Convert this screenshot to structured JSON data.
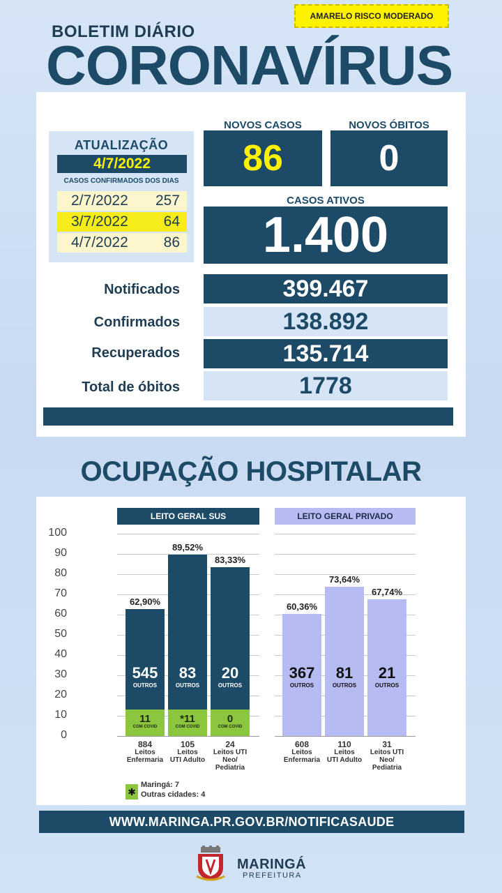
{
  "risk_label": "AMARELO RISCO MODERADO",
  "header": {
    "subtitle": "BOLETIM DIÁRIO",
    "title": "CORONAVÍRUS"
  },
  "update": {
    "title": "ATUALIZAÇÃO",
    "date": "4/7/2022",
    "confirmed_label": "CASOS CONFIRMADOS DOS DIAS",
    "days": [
      {
        "date": "2/7/2022",
        "value": "257"
      },
      {
        "date": "3/7/2022",
        "value": "64"
      },
      {
        "date": "4/7/2022",
        "value": "86"
      }
    ]
  },
  "kpis": {
    "new_cases_label": "NOVOS CASOS",
    "new_cases": "86",
    "new_deaths_label": "NOVOS ÓBITOS",
    "new_deaths": "0",
    "active_label": "CASOS ATIVOS",
    "active": "1.400"
  },
  "stats": [
    {
      "label": "Notificados",
      "value": "399.467"
    },
    {
      "label": "Confirmados",
      "value": "138.892"
    },
    {
      "label": "Recuperados",
      "value": "135.714"
    },
    {
      "label": "Total de óbitos",
      "value": "1778"
    }
  ],
  "hospital": {
    "title": "OCUPAÇÃO HOSPITALAR",
    "sus_label": "LEITO GERAL SUS",
    "private_label": "LEITO GERAL PRIVADO",
    "outros_label": "OUTROS",
    "covid_label": "COM COVID",
    "note_icon": "asterisk",
    "note_line1": "Maringá: 7",
    "note_line2": "Outras cidades: 4"
  },
  "chart_data": {
    "type": "bar",
    "ylim": [
      0,
      100
    ],
    "yticks": [
      "100",
      "90",
      "80",
      "70",
      "60",
      "50",
      "40",
      "30",
      "20",
      "10",
      "0"
    ],
    "groups": [
      {
        "name": "LEITO GERAL SUS",
        "bars": [
          {
            "occupancy": 62.9,
            "pct_label": "62,90%",
            "outros": "545",
            "covid": "11",
            "beds": "884",
            "category": [
              "Leitos",
              "Enfermaria"
            ]
          },
          {
            "occupancy": 89.52,
            "pct_label": "89,52%",
            "outros": "83",
            "covid": "*11",
            "beds": "105",
            "category": [
              "Leitos",
              "UTI Adulto"
            ]
          },
          {
            "occupancy": 83.33,
            "pct_label": "83,33%",
            "outros": "20",
            "covid": "0",
            "beds": "24",
            "category": [
              "Leitos UTI",
              "Neo/",
              "Pediatria"
            ]
          }
        ]
      },
      {
        "name": "LEITO GERAL PRIVADO",
        "bars": [
          {
            "occupancy": 60.36,
            "pct_label": "60,36%",
            "outros": "367",
            "beds": "608",
            "category": [
              "Leitos",
              "Enfermaria"
            ]
          },
          {
            "occupancy": 73.64,
            "pct_label": "73,64%",
            "outros": "81",
            "beds": "110",
            "category": [
              "Leitos",
              "UTI Adulto"
            ]
          },
          {
            "occupancy": 67.74,
            "pct_label": "67,74%",
            "outros": "21",
            "beds": "31",
            "category": [
              "Leitos UTI",
              "Neo/",
              "Pediatria"
            ]
          }
        ]
      }
    ],
    "colors": {
      "sus": "#1d4a66",
      "covid": "#8cc63f",
      "private": "#b6bcf2"
    }
  },
  "footer": {
    "url": "WWW.MARINGA.PR.GOV.BR/NOTIFICASAUDE",
    "logo_name": "MARINGÁ",
    "logo_sub": "PREFEITURA"
  }
}
